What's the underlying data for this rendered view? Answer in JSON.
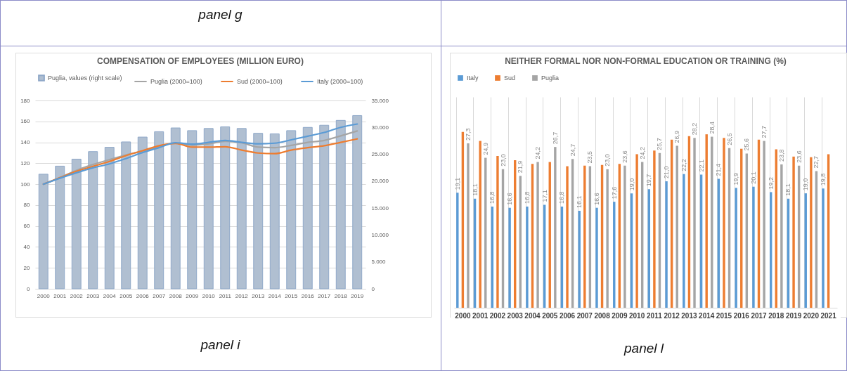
{
  "chart_data": [
    {
      "type": "bar",
      "title": "COMPENSATION OF EMPLOYEES (MILLION EURO)",
      "categories": [
        "2000",
        "2001",
        "2002",
        "2003",
        "2004",
        "2005",
        "2006",
        "2007",
        "2008",
        "2009",
        "2010",
        "2011",
        "2012",
        "2013",
        "2014",
        "2015",
        "2016",
        "2017",
        "2018",
        "2019"
      ],
      "series": [
        {
          "name": "Puglia, values (right scale)",
          "type": "bar",
          "axis": "y2",
          "color": "#b0bfd1",
          "values": [
            21300,
            22800,
            24100,
            25500,
            26300,
            27300,
            28200,
            29200,
            29900,
            29400,
            29800,
            30100,
            29800,
            28900,
            28800,
            29400,
            30000,
            30400,
            31300,
            32200
          ]
        },
        {
          "name": "Puglia (2000=100)",
          "type": "line",
          "color": "#a5a5a5",
          "values": [
            100,
            106.2,
            113.2,
            118.8,
            123.4,
            127.9,
            131.7,
            135.8,
            139.2,
            137.3,
            138.6,
            140.9,
            139.6,
            135.4,
            134.9,
            137.1,
            140,
            141.8,
            146.2,
            150.9
          ]
        },
        {
          "name": "Sud (2000=100)",
          "type": "line",
          "color": "#ed7d31",
          "values": [
            100,
            106.2,
            112.3,
            117,
            121.7,
            127.3,
            132,
            136.8,
            139,
            135.4,
            135.4,
            135.8,
            132.6,
            129.8,
            129.2,
            132.6,
            134.9,
            136.8,
            140,
            143.3
          ]
        },
        {
          "name": "Italy (2000=100)",
          "type": "line",
          "color": "#5b9bd5",
          "values": [
            100,
            105.7,
            110.9,
            115.6,
            119.4,
            124.5,
            130.2,
            134.9,
            139.6,
            138.3,
            140,
            141.8,
            140,
            138.6,
            139.2,
            142.4,
            145.8,
            149.4,
            154.3,
            157.5
          ]
        }
      ],
      "ylim": [
        0,
        180
      ],
      "yticks": [
        0,
        20,
        40,
        60,
        80,
        100,
        120,
        140,
        160,
        180
      ],
      "y2lim": [
        0,
        35000
      ],
      "y2ticks": [
        0,
        {
          "value": 5000,
          "label": "5.000"
        },
        {
          "value": 10000,
          "label": "10.000"
        },
        {
          "value": 15000,
          "label": "15.000"
        },
        {
          "value": 20000,
          "label": "20.000"
        },
        {
          "value": 25000,
          "label": "25.000"
        },
        {
          "value": 30000,
          "label": "30.000"
        },
        {
          "value": 35000,
          "label": "35.000"
        }
      ],
      "grid": "y",
      "legend": "top",
      "annotations": [
        "panel g",
        "panel i"
      ]
    },
    {
      "type": "bar",
      "title": "NEITHER FORMAL NOR NON-FORMAL EDUCATION OR TRAINING (%)",
      "categories": [
        "2000",
        "2001",
        "2002",
        "2003",
        "2004",
        "2005",
        "2006",
        "2007",
        "2008",
        "2009",
        "2010",
        "2011",
        "2012",
        "2013",
        "2014",
        "2015",
        "2016",
        "2017",
        "2018",
        "2019",
        "2020",
        "2021"
      ],
      "series": [
        {
          "name": "Italy",
          "color": "#5b9bd5",
          "values": [
            19.1,
            18.1,
            16.8,
            16.6,
            16.8,
            17.1,
            16.8,
            16.1,
            16.6,
            17.6,
            19.0,
            19.7,
            21.0,
            22.2,
            22.1,
            21.4,
            19.9,
            20.1,
            19.2,
            18.1,
            19.0,
            19.8
          ],
          "value_labels": [
            "19,1",
            "18,1",
            "16,8",
            "16,6",
            "16,8",
            "17,1",
            "16,8",
            "16,1",
            "16,6",
            "17,6",
            "19,0",
            "19,7",
            "21,0",
            "22,2",
            "22,1",
            "21,4",
            "19,9",
            "20,1",
            "19,2",
            "18,1",
            "19,0",
            "19,8"
          ]
        },
        {
          "name": "Sud",
          "color": "#ed7d31",
          "values": [
            29.2,
            27.7,
            25.2,
            24.5,
            23.9,
            24.2,
            23.5,
            23.6,
            23.7,
            23.9,
            25.5,
            26.1,
            27.9,
            28.5,
            28.8,
            28.2,
            26.4,
            27.9,
            26.3,
            25.1,
            25.0,
            25.5
          ]
        },
        {
          "name": "Puglia",
          "color": "#a5a5a5",
          "values": [
            27.3,
            24.9,
            23.0,
            21.9,
            24.2,
            26.7,
            24.7,
            23.5,
            23.0,
            23.6,
            24.2,
            25.7,
            26.9,
            28.2,
            28.4,
            26.5,
            25.6,
            27.7,
            23.8,
            23.6,
            22.7,
            null
          ],
          "value_labels": [
            "27,3",
            "24,9",
            "23,0",
            "21,9",
            "24,2",
            "26,7",
            "24,7",
            "23,5",
            "23,0",
            "23,6",
            "24,2",
            "25,7",
            "26,9",
            "28,2",
            "28,4",
            "26,5",
            "25,6",
            "27,7",
            "23,8",
            "23,6",
            "22,7",
            null
          ]
        }
      ],
      "ylim": [
        0,
        35
      ],
      "tick_labels": "x",
      "grid": "x",
      "legend": "top",
      "annotations": [
        "panel l"
      ]
    }
  ]
}
